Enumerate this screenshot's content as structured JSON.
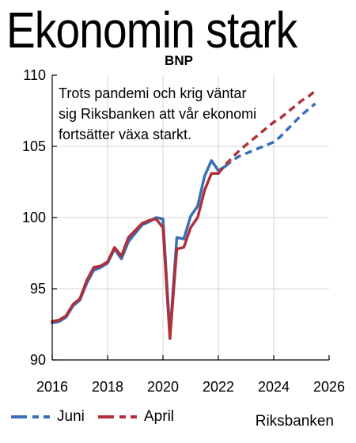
{
  "headline": "Ekonomin stark",
  "source": "Riksbanken",
  "colors": {
    "juni": "#3a6fb5",
    "april": "#b0303a",
    "axis": "#000000",
    "grid": "#d4d4d4"
  },
  "chart_data": {
    "type": "line",
    "title": "BNP",
    "annotation": "Trots pandemi och krig väntar sig Riksbanken att vår ekonomi fortsätter växa starkt.",
    "annotation_lines": [
      "Trots pandemi och krig väntar",
      "sig Riksbanken att vår ekonomi",
      "fortsätter växa starkt."
    ],
    "xlabel": "",
    "ylabel": "",
    "xlim": [
      2016,
      2026
    ],
    "ylim": [
      90,
      110
    ],
    "xticks": [
      2016,
      2018,
      2020,
      2022,
      2024,
      2026
    ],
    "yticks": [
      90,
      95,
      100,
      105,
      110
    ],
    "grid": "horizontal",
    "legend_position": "bottom-left",
    "series": [
      {
        "name": "Juni",
        "color": "#3a6fb5",
        "x": [
          2016.0,
          2016.25,
          2016.5,
          2016.75,
          2017.0,
          2017.25,
          2017.5,
          2017.75,
          2018.0,
          2018.25,
          2018.5,
          2018.75,
          2019.0,
          2019.25,
          2019.5,
          2019.75,
          2020.0,
          2020.25,
          2020.5,
          2020.75,
          2021.0,
          2021.25,
          2021.5,
          2021.75,
          2022.0,
          2022.25
        ],
        "values": [
          92.6,
          92.7,
          93.0,
          93.8,
          94.2,
          95.4,
          96.3,
          96.5,
          96.8,
          97.8,
          97.1,
          98.3,
          98.9,
          99.5,
          99.7,
          100.0,
          99.9,
          91.8,
          98.6,
          98.5,
          100.1,
          100.8,
          102.9,
          104.0,
          103.3,
          103.6
        ],
        "forecast_x": [
          2022.25,
          2022.5,
          2022.75,
          2023.0,
          2023.25,
          2023.5,
          2023.75,
          2024.0,
          2024.25,
          2024.5,
          2024.75,
          2025.0,
          2025.25,
          2025.5
        ],
        "forecast_values": [
          103.6,
          104.0,
          104.3,
          104.5,
          104.7,
          104.9,
          105.1,
          105.3,
          105.7,
          106.2,
          106.7,
          107.2,
          107.6,
          108.0
        ]
      },
      {
        "name": "April",
        "color": "#b0303a",
        "x": [
          2016.0,
          2016.25,
          2016.5,
          2016.75,
          2017.0,
          2017.25,
          2017.5,
          2017.75,
          2018.0,
          2018.25,
          2018.5,
          2018.75,
          2019.0,
          2019.25,
          2019.5,
          2019.75,
          2020.0,
          2020.25,
          2020.5,
          2020.75,
          2021.0,
          2021.25,
          2021.5,
          2021.75,
          2022.0
        ],
        "values": [
          92.7,
          92.8,
          93.1,
          93.9,
          94.3,
          95.6,
          96.5,
          96.6,
          96.9,
          97.9,
          97.3,
          98.6,
          99.1,
          99.6,
          99.8,
          99.9,
          99.3,
          91.5,
          97.8,
          97.9,
          99.3,
          100.0,
          101.9,
          103.1,
          103.1
        ],
        "forecast_x": [
          2022.0,
          2022.25,
          2022.5,
          2022.75,
          2023.0,
          2023.25,
          2023.5,
          2023.75,
          2024.0,
          2024.25,
          2024.5,
          2024.75,
          2025.0,
          2025.25,
          2025.5
        ],
        "forecast_values": [
          103.1,
          103.7,
          104.2,
          104.7,
          105.1,
          105.5,
          105.9,
          106.3,
          106.7,
          107.0,
          107.4,
          107.8,
          108.2,
          108.5,
          108.9
        ]
      }
    ]
  }
}
